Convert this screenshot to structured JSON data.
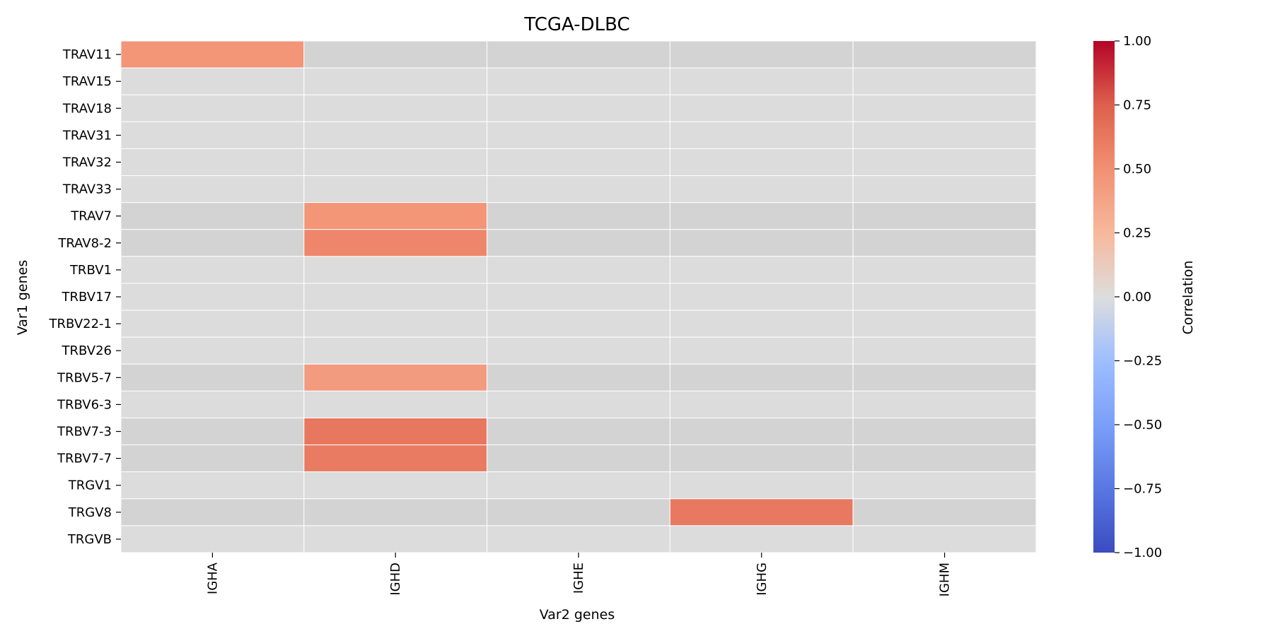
{
  "chart_data": {
    "type": "heatmap",
    "title": "TCGA-DLBC",
    "xlabel": "Var2 genes",
    "ylabel": "Var1 genes",
    "colorbar_label": "Correlation",
    "colormap": "coolwarm",
    "vmin": -1.0,
    "vmax": 1.0,
    "colorbar_ticks": [
      "1.00",
      "0.75",
      "0.50",
      "0.25",
      "0.00",
      "−0.25",
      "−0.50",
      "−0.75",
      "−1.00"
    ],
    "colorbar_tick_values": [
      1.0,
      0.75,
      0.5,
      0.25,
      0.0,
      -0.25,
      -0.5,
      -0.75,
      -1.0
    ],
    "x_categories": [
      "IGHA",
      "IGHD",
      "IGHE",
      "IGHG",
      "IGHM"
    ],
    "y_categories": [
      "TRAV11",
      "TRAV15",
      "TRAV18",
      "TRAV31",
      "TRAV32",
      "TRAV33",
      "TRAV7",
      "TRAV8-2",
      "TRBV1",
      "TRBV17",
      "TRBV22-1",
      "TRBV26",
      "TRBV5-7",
      "TRBV6-3",
      "TRBV7-3",
      "TRBV7-7",
      "TRGV1",
      "TRGV8",
      "TRGVB"
    ],
    "values": [
      [
        0.47,
        0.0,
        0.0,
        0.0,
        0.0
      ],
      [
        0.0,
        0.0,
        0.0,
        0.0,
        0.0
      ],
      [
        0.0,
        0.0,
        0.0,
        0.0,
        0.0
      ],
      [
        0.0,
        0.0,
        0.0,
        0.0,
        0.0
      ],
      [
        0.0,
        0.0,
        0.0,
        0.0,
        0.0
      ],
      [
        0.0,
        0.0,
        0.0,
        0.0,
        0.0
      ],
      [
        0.0,
        0.47,
        0.0,
        0.0,
        0.0
      ],
      [
        0.0,
        0.55,
        0.0,
        0.0,
        0.0
      ],
      [
        0.0,
        0.0,
        0.0,
        0.0,
        0.0
      ],
      [
        0.0,
        0.0,
        0.0,
        0.0,
        0.0
      ],
      [
        0.0,
        0.0,
        0.0,
        0.0,
        0.0
      ],
      [
        0.0,
        0.0,
        0.0,
        0.0,
        0.0
      ],
      [
        0.0,
        0.43,
        0.0,
        0.0,
        0.0
      ],
      [
        0.0,
        0.0,
        0.0,
        0.0,
        0.0
      ],
      [
        0.0,
        0.63,
        0.0,
        0.0,
        0.0
      ],
      [
        0.0,
        0.61,
        0.0,
        0.0,
        0.0
      ],
      [
        0.0,
        0.0,
        0.0,
        0.0,
        0.0
      ],
      [
        0.0,
        0.0,
        0.0,
        0.62,
        0.0
      ],
      [
        0.0,
        0.0,
        0.0,
        0.0,
        0.0
      ]
    ],
    "significant_rows": [
      "TRAV11",
      "TRAV7",
      "TRAV8-2",
      "TRBV5-7",
      "TRBV7-3",
      "TRBV7-7",
      "TRGV8"
    ],
    "row_band_colors": {
      "significant": "#d3d3d3",
      "non_significant": "#dcdcdc"
    },
    "grid_line_color": "#ffffff",
    "grid": false
  }
}
